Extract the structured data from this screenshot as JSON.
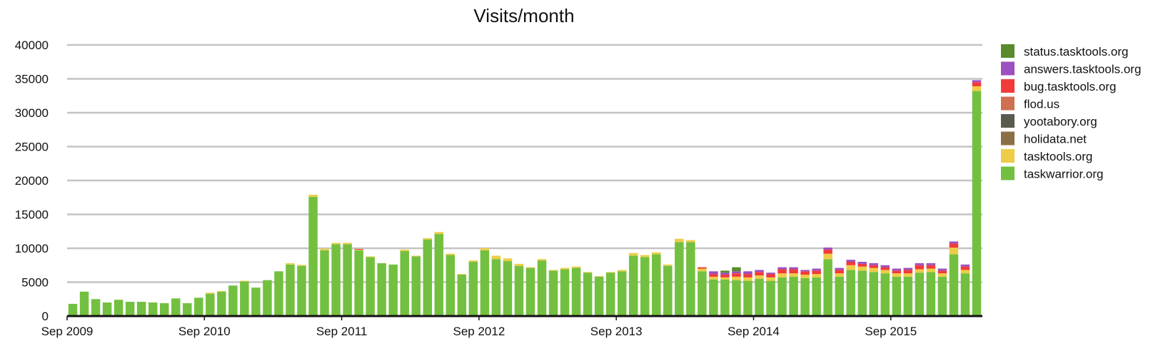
{
  "chart_data": {
    "type": "bar",
    "stacked": true,
    "title": "Visits/month",
    "xlabel": "",
    "ylabel": "",
    "ylim": [
      0,
      40000
    ],
    "yticks": [
      0,
      5000,
      10000,
      15000,
      20000,
      25000,
      30000,
      35000,
      40000
    ],
    "xtick_labels": [
      "Sep 2009",
      "Sep 2010",
      "Sep 2011",
      "Sep 2012",
      "Sep 2013",
      "Sep 2014",
      "Sep 2015"
    ],
    "x_first_month": "2009-09",
    "x_last_month": "2016-04",
    "grid": true,
    "legend_position": "right",
    "colors": {
      "status.tasktools.org": "#5a8a2e",
      "answers.tasktools.org": "#9b4fc0",
      "bug.tasktools.org": "#f23a3a",
      "flod.us": "#cf7050",
      "yootabory.org": "#5a5a4e",
      "holidata.net": "#8b7045",
      "tasktools.org": "#edcd47",
      "taskwarrior.org": "#73c040"
    },
    "legend": [
      "status.tasktools.org",
      "answers.tasktools.org",
      "bug.tasktools.org",
      "flod.us",
      "yootabory.org",
      "holidata.net",
      "tasktools.org",
      "taskwarrior.org"
    ],
    "series": [
      {
        "name": "taskwarrior.org",
        "values": [
          1800,
          3600,
          2500,
          2000,
          2400,
          2100,
          2100,
          2000,
          1900,
          2600,
          1900,
          2700,
          3300,
          3600,
          4500,
          5100,
          4200,
          5300,
          6600,
          7600,
          7400,
          17600,
          9700,
          10600,
          10600,
          9700,
          8700,
          7800,
          7600,
          9600,
          8800,
          11300,
          12100,
          9000,
          6100,
          8000,
          9700,
          8400,
          8100,
          7400,
          7100,
          8200,
          6700,
          6900,
          7100,
          6400,
          5800,
          6400,
          6600,
          8900,
          8700,
          9100,
          7400,
          10900,
          10900,
          6600,
          5400,
          5400,
          5300,
          5200,
          5500,
          5200,
          5700,
          5800,
          5600,
          5700,
          8400,
          5800,
          6800,
          6700,
          6500,
          6300,
          5800,
          5800,
          6400,
          6500,
          5800,
          9100,
          6300,
          33200
        ]
      },
      {
        "name": "tasktools.org",
        "values": [
          0,
          0,
          0,
          0,
          0,
          0,
          0,
          0,
          0,
          0,
          0,
          0,
          150,
          100,
          0,
          100,
          0,
          0,
          0,
          200,
          150,
          300,
          250,
          200,
          200,
          100,
          100,
          0,
          0,
          200,
          100,
          200,
          300,
          200,
          100,
          200,
          300,
          500,
          400,
          300,
          100,
          200,
          100,
          200,
          200,
          100,
          100,
          100,
          200,
          400,
          300,
          300,
          200,
          500,
          300,
          400,
          400,
          300,
          500,
          500,
          500,
          500,
          600,
          500,
          500,
          500,
          800,
          500,
          700,
          600,
          600,
          500,
          500,
          500,
          500,
          500,
          500,
          1000,
          500,
          700
        ]
      },
      {
        "name": "holidata.net",
        "values": [
          0,
          0,
          0,
          0,
          0,
          0,
          0,
          0,
          0,
          0,
          0,
          0,
          0,
          0,
          0,
          0,
          0,
          0,
          0,
          0,
          0,
          0,
          0,
          0,
          0,
          0,
          0,
          0,
          0,
          0,
          0,
          0,
          0,
          0,
          0,
          0,
          0,
          0,
          0,
          0,
          0,
          0,
          0,
          0,
          0,
          0,
          0,
          0,
          0,
          0,
          0,
          0,
          0,
          0,
          0,
          0,
          0,
          0,
          0,
          0,
          0,
          0,
          0,
          0,
          0,
          0,
          0,
          0,
          0,
          0,
          0,
          0,
          0,
          0,
          0,
          0,
          0,
          0,
          0,
          0
        ]
      },
      {
        "name": "yootabory.org",
        "values": [
          0,
          0,
          0,
          0,
          0,
          0,
          0,
          0,
          0,
          0,
          0,
          0,
          0,
          0,
          0,
          0,
          0,
          0,
          0,
          0,
          0,
          0,
          0,
          0,
          0,
          0,
          0,
          0,
          0,
          0,
          0,
          0,
          0,
          0,
          0,
          0,
          0,
          0,
          0,
          0,
          0,
          0,
          0,
          0,
          0,
          0,
          0,
          0,
          0,
          0,
          0,
          0,
          0,
          0,
          0,
          0,
          0,
          0,
          0,
          0,
          0,
          0,
          0,
          0,
          0,
          0,
          0,
          0,
          0,
          0,
          0,
          0,
          0,
          0,
          0,
          0,
          0,
          0,
          0,
          0
        ]
      },
      {
        "name": "flod.us",
        "values": [
          0,
          0,
          0,
          0,
          0,
          0,
          0,
          0,
          0,
          0,
          0,
          0,
          0,
          0,
          0,
          0,
          0,
          0,
          0,
          0,
          0,
          0,
          0,
          0,
          0,
          0,
          0,
          0,
          0,
          0,
          0,
          0,
          0,
          0,
          0,
          0,
          0,
          0,
          0,
          0,
          0,
          0,
          0,
          0,
          0,
          0,
          0,
          0,
          0,
          0,
          0,
          0,
          0,
          0,
          0,
          0,
          0,
          0,
          0,
          0,
          0,
          0,
          0,
          0,
          0,
          0,
          0,
          0,
          0,
          0,
          0,
          0,
          0,
          0,
          0,
          0,
          0,
          0,
          0,
          0
        ]
      },
      {
        "name": "bug.tasktools.org",
        "values": [
          0,
          0,
          0,
          0,
          0,
          0,
          0,
          0,
          0,
          0,
          0,
          0,
          0,
          0,
          0,
          0,
          0,
          0,
          0,
          0,
          0,
          0,
          0,
          0,
          0,
          100,
          0,
          0,
          0,
          0,
          0,
          0,
          0,
          0,
          0,
          0,
          0,
          0,
          0,
          0,
          0,
          0,
          0,
          0,
          0,
          0,
          0,
          0,
          0,
          0,
          0,
          0,
          0,
          0,
          0,
          200,
          400,
          400,
          500,
          500,
          500,
          500,
          600,
          600,
          500,
          500,
          600,
          500,
          500,
          400,
          400,
          400,
          400,
          500,
          600,
          500,
          400,
          600,
          500,
          600
        ]
      },
      {
        "name": "answers.tasktools.org",
        "values": [
          0,
          0,
          0,
          0,
          0,
          0,
          0,
          0,
          0,
          0,
          0,
          0,
          0,
          0,
          0,
          0,
          0,
          0,
          0,
          0,
          0,
          0,
          0,
          0,
          0,
          0,
          0,
          0,
          0,
          0,
          0,
          0,
          0,
          0,
          0,
          0,
          0,
          0,
          0,
          0,
          0,
          0,
          0,
          0,
          0,
          0,
          0,
          0,
          0,
          0,
          0,
          0,
          0,
          0,
          0,
          0,
          400,
          300,
          300,
          400,
          300,
          200,
          300,
          300,
          200,
          300,
          300,
          300,
          300,
          300,
          300,
          300,
          300,
          300,
          300,
          300,
          300,
          300,
          300,
          300
        ]
      },
      {
        "name": "status.tasktools.org",
        "values": [
          0,
          0,
          0,
          0,
          0,
          0,
          0,
          0,
          0,
          0,
          0,
          0,
          0,
          0,
          0,
          0,
          0,
          0,
          0,
          0,
          0,
          0,
          0,
          0,
          0,
          0,
          0,
          0,
          0,
          0,
          0,
          0,
          0,
          0,
          0,
          0,
          0,
          0,
          0,
          0,
          0,
          0,
          0,
          0,
          0,
          0,
          0,
          0,
          0,
          0,
          0,
          0,
          0,
          0,
          0,
          0,
          0,
          300,
          600,
          0,
          0,
          0,
          0,
          0,
          0,
          0,
          0,
          0,
          0,
          0,
          0,
          0,
          0,
          0,
          0,
          0,
          0,
          0,
          0,
          0
        ]
      }
    ]
  }
}
